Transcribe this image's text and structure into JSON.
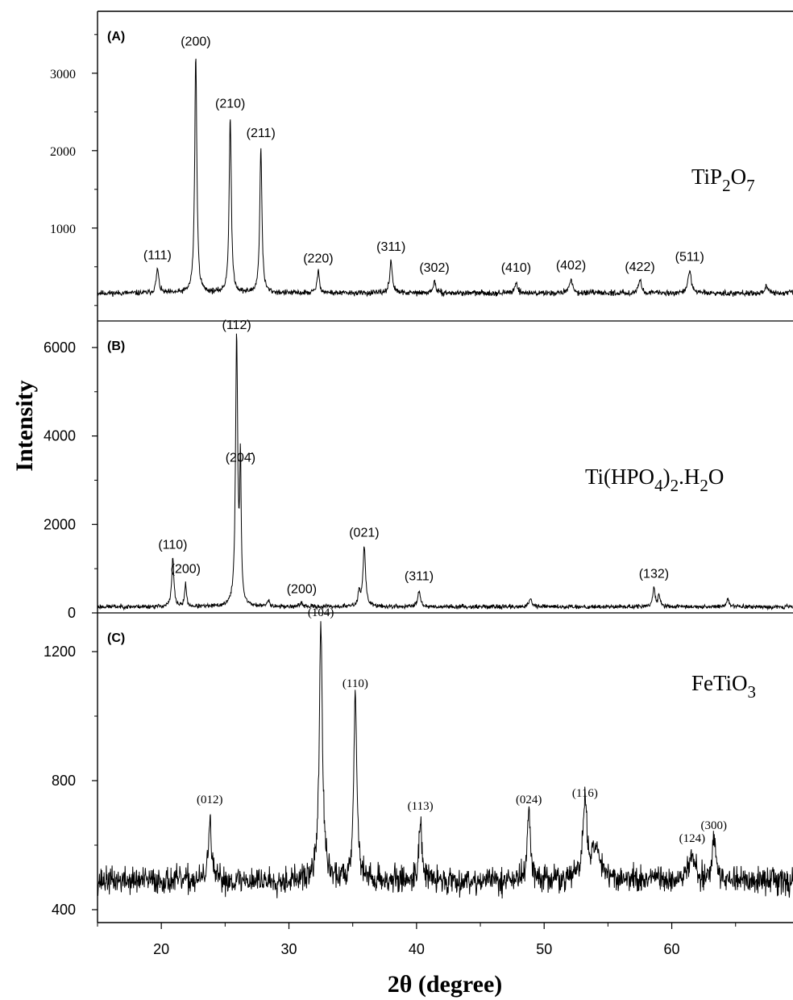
{
  "chart_data": {
    "type": "line",
    "xlabel": "2θ (degree)",
    "ylabel": "Intensity",
    "xlim": [
      15,
      69.5
    ],
    "x_ticks": [
      "20",
      "30",
      "40",
      "50",
      "60"
    ],
    "x_tick_values": [
      20,
      30,
      40,
      50,
      60
    ],
    "panels": [
      {
        "label": "(A)",
        "compound": [
          "TiP",
          "2",
          "O",
          "7"
        ],
        "ylim": [
          -200,
          3800
        ],
        "y_ticks": [
          "1000",
          "2000",
          "3000"
        ],
        "y_tick_values": [
          1000,
          2000,
          3000
        ],
        "baseline": 160,
        "noise": 22,
        "seed": 11,
        "peaks": [
          {
            "x": 19.7,
            "height": 470,
            "width": 0.12,
            "label": "(111)"
          },
          {
            "x": 22.7,
            "height": 3230,
            "width": 0.1,
            "label": "(200)"
          },
          {
            "x": 25.4,
            "height": 2430,
            "width": 0.1,
            "label": "(210)"
          },
          {
            "x": 27.8,
            "height": 2050,
            "width": 0.1,
            "label": "(211)"
          },
          {
            "x": 32.3,
            "height": 430,
            "width": 0.12,
            "label": "(220)"
          },
          {
            "x": 38.0,
            "height": 580,
            "width": 0.12,
            "label": "(311)"
          },
          {
            "x": 41.4,
            "height": 310,
            "width": 0.12,
            "label": "(302)"
          },
          {
            "x": 47.8,
            "height": 310,
            "width": 0.12,
            "label": "(410)"
          },
          {
            "x": 52.1,
            "height": 340,
            "width": 0.15,
            "label": "(402)"
          },
          {
            "x": 57.5,
            "height": 320,
            "width": 0.15,
            "label": "(422)"
          },
          {
            "x": 61.4,
            "height": 450,
            "width": 0.15,
            "label": "(511)"
          },
          {
            "x": 67.4,
            "height": 250,
            "width": 0.12,
            "label": ""
          }
        ]
      },
      {
        "label": "(B)",
        "compound": [
          "Ti(HPO",
          "4",
          ")",
          "2",
          ".H",
          "2",
          "O"
        ],
        "ylim": [
          0,
          6600
        ],
        "y_ticks": [
          "0",
          "2000",
          "4000",
          "6000"
        ],
        "y_tick_values": [
          0,
          2000,
          4000,
          6000
        ],
        "baseline": 140,
        "noise": 30,
        "seed": 23,
        "peaks": [
          {
            "x": 20.9,
            "height": 1230,
            "width": 0.1,
            "label": "(110)"
          },
          {
            "x": 21.9,
            "height": 680,
            "width": 0.08,
            "label": "(200)"
          },
          {
            "x": 25.9,
            "height": 6200,
            "width": 0.1,
            "label": "(112)"
          },
          {
            "x": 26.2,
            "height": 3200,
            "width": 0.07,
            "label": "(204̄)"
          },
          {
            "x": 28.4,
            "height": 300,
            "width": 0.1,
            "label": ""
          },
          {
            "x": 31.0,
            "height": 230,
            "width": 0.1,
            "label": "(200)"
          },
          {
            "x": 35.5,
            "height": 450,
            "width": 0.1,
            "label": ""
          },
          {
            "x": 35.9,
            "height": 1500,
            "width": 0.12,
            "label": "(021)"
          },
          {
            "x": 40.2,
            "height": 520,
            "width": 0.12,
            "label": "(311)"
          },
          {
            "x": 48.9,
            "height": 320,
            "width": 0.12,
            "label": ""
          },
          {
            "x": 58.6,
            "height": 570,
            "width": 0.1,
            "label": "(132)"
          },
          {
            "x": 59.0,
            "height": 420,
            "width": 0.1,
            "label": ""
          },
          {
            "x": 64.4,
            "height": 320,
            "width": 0.12,
            "label": ""
          }
        ]
      },
      {
        "label": "(C)",
        "compound": [
          "FeTiO",
          "3"
        ],
        "ylim": [
          360,
          1320
        ],
        "y_ticks": [
          "400",
          "800",
          "1200"
        ],
        "y_tick_values": [
          400,
          800,
          1200
        ],
        "baseline": 490,
        "noise": 26,
        "seed": 37,
        "peaks": [
          {
            "x": 23.8,
            "height": 700,
            "width": 0.12,
            "label": "(012)"
          },
          {
            "x": 32.5,
            "height": 1280,
            "width": 0.15,
            "label": "(104)"
          },
          {
            "x": 35.2,
            "height": 1060,
            "width": 0.15,
            "label": "(110)"
          },
          {
            "x": 40.3,
            "height": 680,
            "width": 0.14,
            "label": "(113)"
          },
          {
            "x": 48.8,
            "height": 700,
            "width": 0.15,
            "label": "(024)"
          },
          {
            "x": 53.2,
            "height": 720,
            "width": 0.2,
            "label": "(116)"
          },
          {
            "x": 54.1,
            "height": 580,
            "width": 0.5,
            "label": ""
          },
          {
            "x": 61.6,
            "height": 580,
            "width": 0.25,
            "label": "(124)"
          },
          {
            "x": 63.3,
            "height": 620,
            "width": 0.15,
            "label": "(300)"
          }
        ]
      }
    ]
  }
}
